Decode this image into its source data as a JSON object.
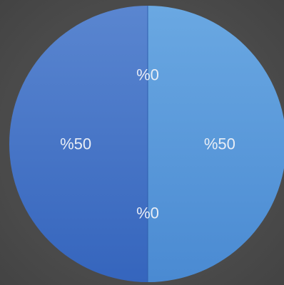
{
  "chart_data": {
    "type": "pie",
    "slices": [
      {
        "value": 50,
        "label": "%50",
        "color": "#5fa0dc"
      },
      {
        "value": 0,
        "label": "%0",
        "color": "#3f79c8"
      },
      {
        "value": 50,
        "label": "%50",
        "color": "#3f6fc4"
      },
      {
        "value": 0,
        "label": "%0",
        "color": "#6aa8e2"
      }
    ],
    "colors": {
      "right_top": "#6aa8e2",
      "right_bottom": "#4a8ad2",
      "left_top": "#5a86d0",
      "left_bottom": "#3565bd",
      "divider": "#2f5fae"
    }
  }
}
